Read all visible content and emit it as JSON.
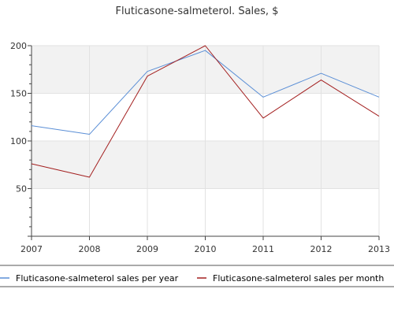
{
  "chart_data": {
    "type": "line",
    "title": "Fluticasone-salmeterol. Sales, $",
    "xlabel": "",
    "ylabel": "",
    "categories": [
      "2007",
      "2008",
      "2009",
      "2010",
      "2011",
      "2012",
      "2013"
    ],
    "ylim": [
      0,
      200
    ],
    "yticks": [
      50,
      100,
      150,
      200
    ],
    "grid": true,
    "legend_position": "bottom",
    "series": [
      {
        "name": "Fluticasone-salmeterol sales per year",
        "color": "#5b8fd6",
        "values": [
          116,
          107,
          173,
          195,
          146,
          171,
          146
        ]
      },
      {
        "name": "Fluticasone-salmeterol sales per month",
        "color": "#a31f1f",
        "values": [
          76,
          62,
          168,
          200,
          124,
          164,
          126
        ]
      }
    ]
  }
}
